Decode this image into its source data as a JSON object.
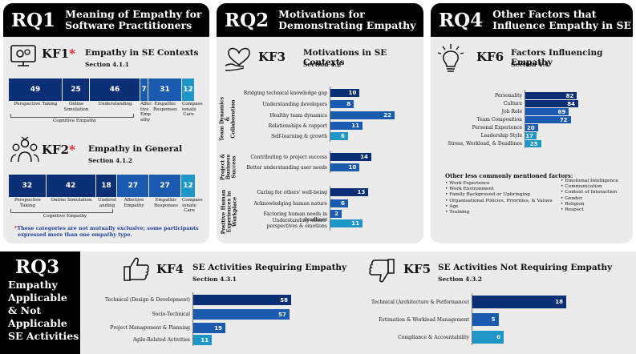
{
  "rq1": {
    "code": "RQ1",
    "title_line1": "Meaning of Empathy for",
    "title_line2": "Software Practitioners",
    "kf1": {
      "code": "KF1",
      "star": "*",
      "title": "Empathy in SE Contexts",
      "section": "Section 4.1.1"
    },
    "kf2": {
      "code": "KF2",
      "star": "*",
      "title": "Empathy in General",
      "section": "Section 4.1.2"
    },
    "note_star": "*",
    "note_line1": "These categories are not mutually exclusive; some participants",
    "note_line2": "expressed more than one empathy type."
  },
  "rq2": {
    "code": "RQ2",
    "title_line1": "Motivations for",
    "title_line2": "Demonstrating Empathy",
    "kf3": {
      "code": "KF3",
      "title": "Motivations in SE Contexts",
      "section": "Section 4.2"
    },
    "groups": {
      "g1_line1": "Team Dynamics &",
      "g1_line2": "Collaboration",
      "g2_line1": "Project &",
      "g2_line2": "Business",
      "g2_line3": "Success",
      "g3_line1": "Positive Human",
      "g3_line2": "Experiences in",
      "g3_line3": "Workplace"
    }
  },
  "rq4": {
    "code": "RQ4",
    "title_line1": "Other Factors that",
    "title_line2": "Influence Empathy in SE",
    "kf6": {
      "code": "KF6",
      "title": "Factors Influencing Empathy",
      "section": "Section 4.4"
    },
    "other_title": "Other less commonly mentioned factors:",
    "other_left": [
      "Work Experience",
      "Work Environment",
      "Family Background or Upbringing",
      "Organisational Policies, Priorities, & Values",
      "Age",
      "Training"
    ],
    "other_right": [
      "Emotional Intelligence",
      "Communication",
      "Context of Interaction",
      "Gender",
      "Religion",
      "Respect"
    ]
  },
  "rq3": {
    "code": "RQ3",
    "sub": [
      "Empathy",
      "Applicable",
      "& Not",
      "Applicable",
      "SE Activities"
    ],
    "kf4": {
      "code": "KF4",
      "title": "SE Activities Requiring Empathy",
      "section": "Section 4.3.1"
    },
    "kf5": {
      "code": "KF5",
      "title": "SE Activities Not Requiring Empathy",
      "section": "Section 4.3.2"
    }
  },
  "icons": [
    "gear-monitor-icon",
    "people-group-icon",
    "heart-hand-icon",
    "lightbulb-icon",
    "thumbs-up-icon",
    "thumbs-down-icon"
  ],
  "colors": {
    "dark": "#0b2f74",
    "mid": "#1a5bb0",
    "light": "#1f96c8",
    "panel": "#ebebeb"
  },
  "chart_data": [
    {
      "type": "bar",
      "title": "Empathy in SE Contexts",
      "categories": [
        "Perspective Taking",
        "Online Simulation",
        "Understanding",
        "Affective Empathy",
        "Empathic Responses",
        "Compassionate Care"
      ],
      "display_labels": [
        "Perspective Taking",
        "Online\nSimulation",
        "Understanding",
        "Affec\ntive\nEmp\nathy",
        "Empathic\nResponses",
        "Compass\nionate\nCare"
      ],
      "values": [
        49,
        25,
        46,
        7,
        31,
        12
      ],
      "group_label": "Cognitive Empathy"
    },
    {
      "type": "bar",
      "title": "Empathy in General",
      "categories": [
        "Perspective Taking",
        "Online Simulation",
        "Understanding",
        "Affective Empathy",
        "Empathic Responses",
        "Compassionate Care"
      ],
      "display_labels": [
        "Perspective\nTaking",
        "Online Simulation",
        "Underst\nanding",
        "Affective\nEmpathy",
        "Empathic\nResponses",
        "Compass\nionate\nCare"
      ],
      "values": [
        32,
        42,
        18,
        27,
        27,
        12
      ],
      "group_label": "Cognitive Empathy"
    },
    {
      "type": "bar",
      "title": "Motivations in SE Contexts",
      "categories": [
        "Bridging technical knowledge gap",
        "Understanding developers",
        "Healthy team dynamics",
        "Relationships & rapport",
        "Self-learning & growth",
        "Contributing to project success",
        "Better understanding user needs",
        "Caring for others' well-being",
        "Acknowledging human nature",
        "Factoring human needs in deadlines",
        "Understanding others' perspectives & emotions"
      ],
      "display_labels": [
        "Bridging technical knowledge gap",
        "Understanding developers",
        "Healthy team dynamics",
        "Relationships & rapport",
        "Self-learning & growth",
        "Contributing to project success",
        "Better understanding user needs",
        "Caring for others' well-being",
        "Acknowledging human nature",
        "Factoring human needs in deadlines",
        "Understanding others'\nperspectives & emotions"
      ],
      "values": [
        10,
        8,
        22,
        11,
        6,
        14,
        10,
        13,
        6,
        2,
        11
      ]
    },
    {
      "type": "bar",
      "title": "Factors Influencing Empathy",
      "categories": [
        "Personality",
        "Culture",
        "Job Role",
        "Team Composition",
        "Personal Experience",
        "Leadership Style",
        "Stress, Workload, & Deadlines"
      ],
      "display_labels": [
        "Personality",
        "Culture",
        "Job Role",
        "Team Composition",
        "Personal Experience",
        "Leadership Style",
        "Stress, Workload, & Deadlines"
      ],
      "values": [
        82,
        84,
        69,
        72,
        20,
        17,
        25
      ]
    },
    {
      "type": "bar",
      "title": "SE Activities Requiring Empathy",
      "categories": [
        "Technical (Design & Development)",
        "Socio-Technical",
        "Project Management & Planning",
        "Agile-Related Activities"
      ],
      "display_labels": [
        "Technical (Design & Development)",
        "Socio-Technical",
        "Project Management & Planning",
        "Agile-Related Activities"
      ],
      "values": [
        58,
        57,
        19,
        11
      ]
    },
    {
      "type": "bar",
      "title": "SE Activities Not Requiring Empathy",
      "categories": [
        "Technical (Architecture & Performance)",
        "Estimation & Workload Management",
        "Compliance & Accountability"
      ],
      "display_labels": [
        "Technical (Architecture & Performance)",
        "Estimation & Workload Management",
        "Compliance & Accountability"
      ],
      "values": [
        18,
        5,
        6
      ]
    }
  ]
}
